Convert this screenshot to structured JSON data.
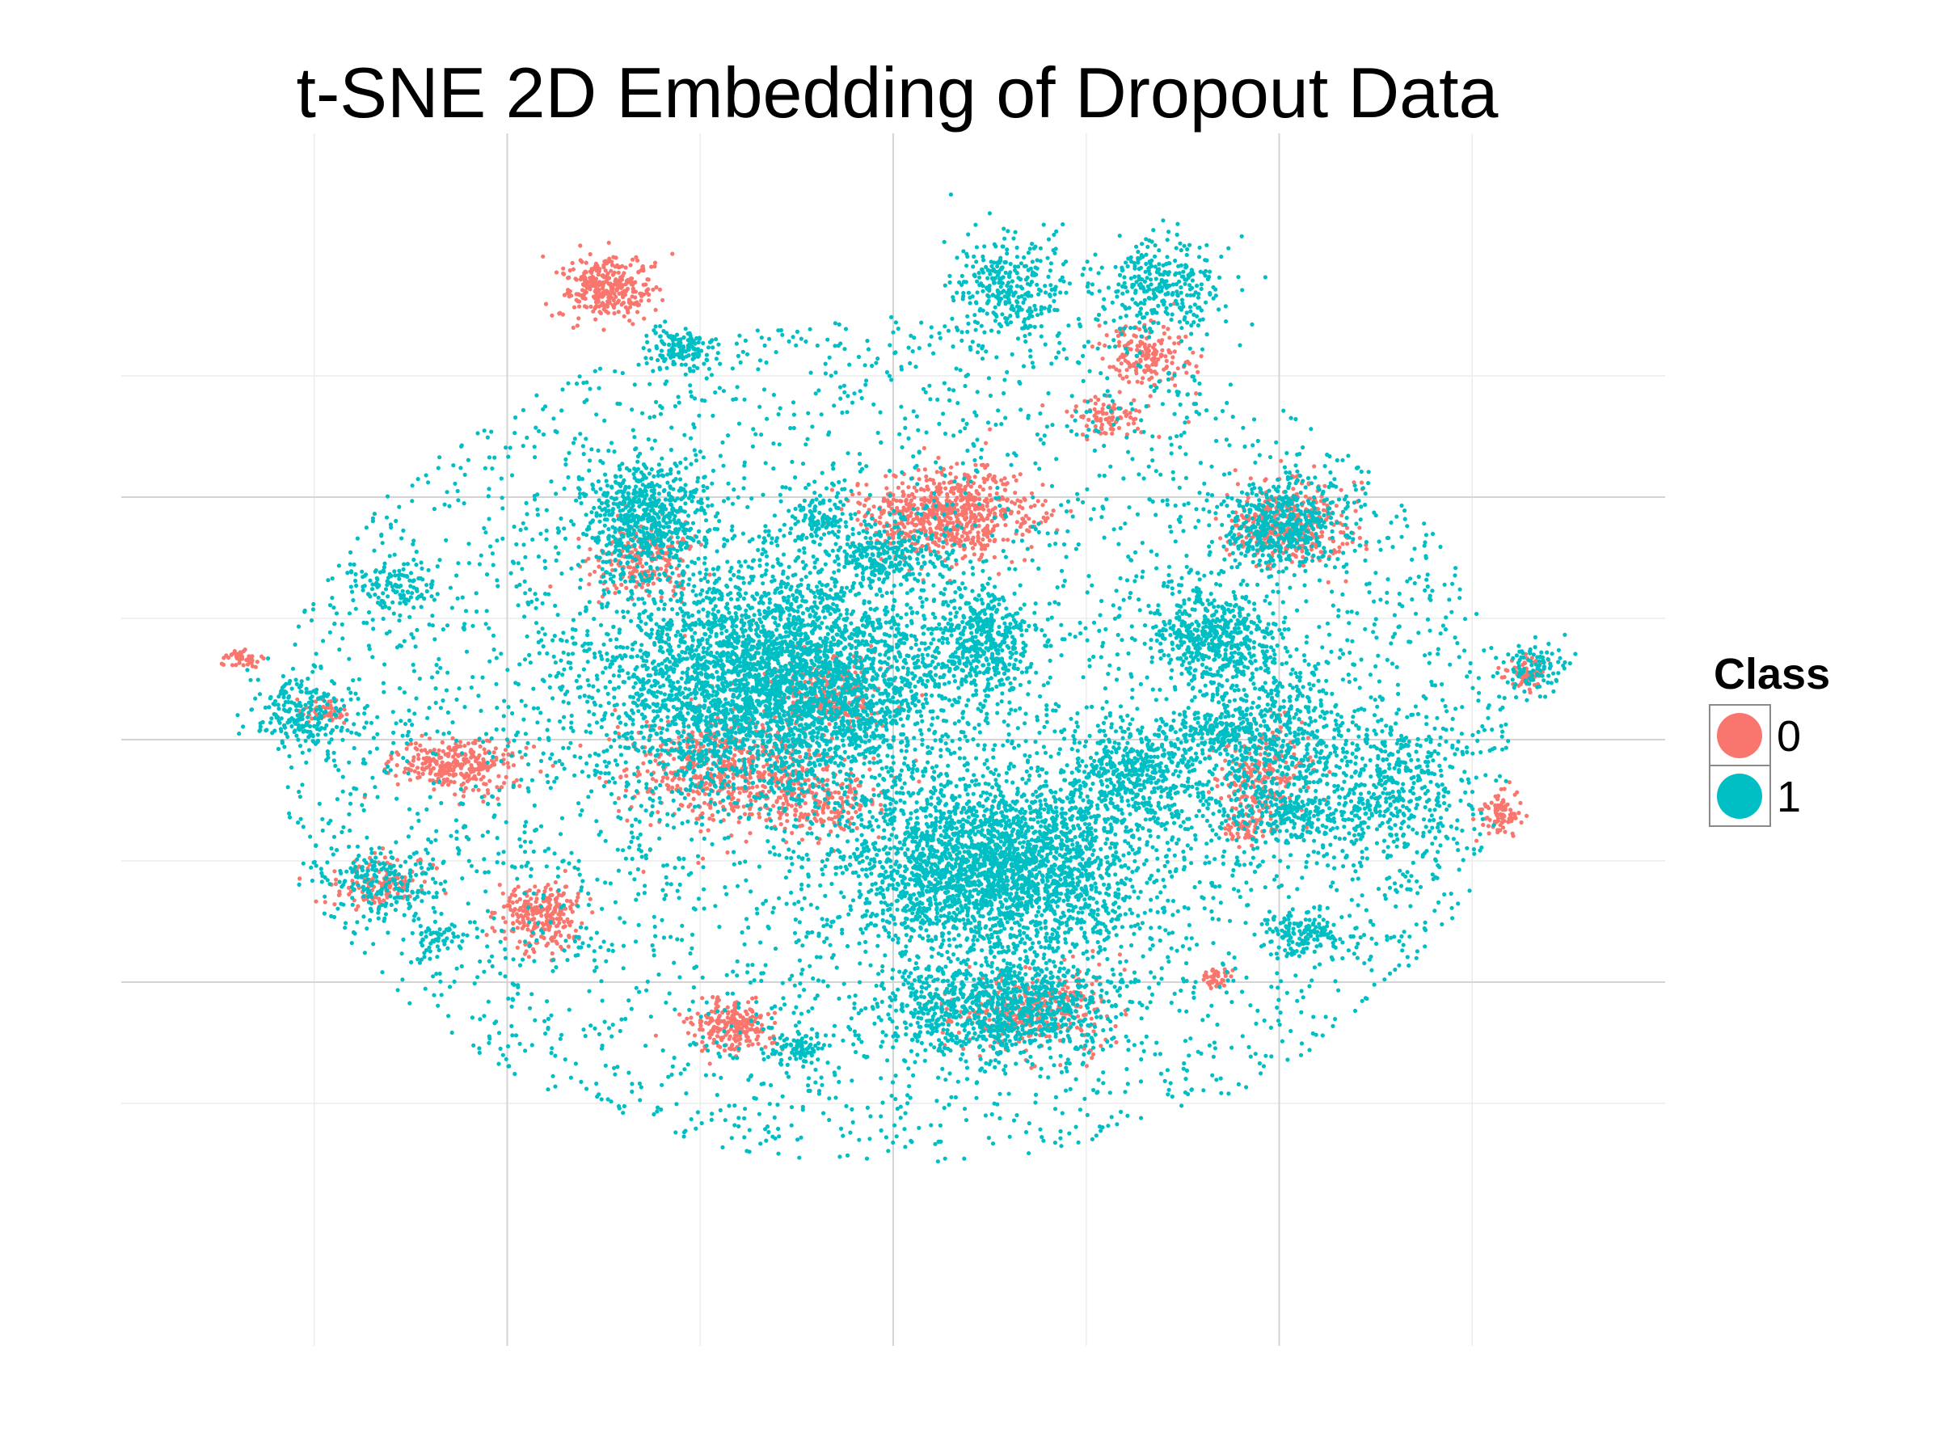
{
  "chart_data": {
    "type": "scatter",
    "title": "t-SNE 2D Embedding of Dropout Data",
    "xlabel": "",
    "ylabel": "",
    "xlim": [
      -50,
      50
    ],
    "ylim": [
      -50,
      50
    ],
    "grid": true,
    "grid_major_x": [
      -25,
      0,
      25
    ],
    "grid_minor_x": [
      -37.5,
      -12.5,
      12.5,
      37.5
    ],
    "grid_major_y": [
      20,
      0,
      -20
    ],
    "grid_minor_y": [
      30,
      10,
      -10,
      -30
    ],
    "tick_labels_shown": false,
    "legend": {
      "title": "Class",
      "placement": "right",
      "entries": [
        {
          "label": "0",
          "color": "#F8766D"
        },
        {
          "label": "1",
          "color": "#00BFC4"
        }
      ]
    },
    "series": [
      {
        "name": "0",
        "color": "#F8766D",
        "clusters": [
          {
            "cx": -18.4,
            "cy": 37.1,
            "rx": 2.6,
            "ry": 2.4,
            "n": 320
          },
          {
            "cx": 3.5,
            "cy": 18.6,
            "rx": 5.0,
            "ry": 3.3,
            "n": 700
          },
          {
            "cx": 25.8,
            "cy": 17.8,
            "rx": 3.4,
            "ry": 3.0,
            "n": 380
          },
          {
            "cx": 16.4,
            "cy": 31.7,
            "rx": 2.6,
            "ry": 2.4,
            "n": 180
          },
          {
            "cx": -28.6,
            "cy": -2.2,
            "rx": 3.4,
            "ry": 1.9,
            "n": 300
          },
          {
            "cx": -22.8,
            "cy": -14.6,
            "rx": 2.6,
            "ry": 2.6,
            "n": 260
          },
          {
            "cx": -33.2,
            "cy": -11.8,
            "rx": 3.0,
            "ry": 2.0,
            "n": 130
          },
          {
            "cx": -10.5,
            "cy": -23.6,
            "rx": 2.5,
            "ry": 1.8,
            "n": 220
          },
          {
            "cx": 9.2,
            "cy": -22.4,
            "rx": 4.5,
            "ry": 3.0,
            "n": 360
          },
          {
            "cx": 24.0,
            "cy": -3.1,
            "rx": 2.5,
            "ry": 3.5,
            "n": 230
          },
          {
            "cx": 39.4,
            "cy": -6.1,
            "rx": 1.1,
            "ry": 1.6,
            "n": 90
          },
          {
            "cx": 41.1,
            "cy": 5.5,
            "rx": 1.2,
            "ry": 1.3,
            "n": 60
          },
          {
            "cx": 20.9,
            "cy": -19.6,
            "rx": 0.8,
            "ry": 0.8,
            "n": 40
          },
          {
            "cx": -42.1,
            "cy": 6.7,
            "rx": 1.2,
            "ry": 0.8,
            "n": 45
          },
          {
            "cx": -36.7,
            "cy": 2.4,
            "rx": 1.4,
            "ry": 1.1,
            "n": 50
          },
          {
            "cx": -16.0,
            "cy": 14.6,
            "rx": 3.2,
            "ry": 3.0,
            "n": 220
          },
          {
            "cx": -10.6,
            "cy": -2.4,
            "rx": 6.0,
            "ry": 4.2,
            "n": 620
          },
          {
            "cx": -3.9,
            "cy": 3.9,
            "rx": 3.4,
            "ry": 3.0,
            "n": 260
          },
          {
            "cx": -4.6,
            "cy": -5.3,
            "rx": 3.0,
            "ry": 2.2,
            "n": 170
          },
          {
            "cx": 13.9,
            "cy": 26.6,
            "rx": 2.6,
            "ry": 1.4,
            "n": 90
          },
          {
            "cx": 22.8,
            "cy": -7.5,
            "rx": 1.2,
            "ry": 1.0,
            "n": 50
          }
        ]
      },
      {
        "name": "1",
        "color": "#00BFC4",
        "clusters": [
          {
            "cx": -7.5,
            "cy": 4.7,
            "rx": 10.5,
            "ry": 8.4,
            "n": 3600
          },
          {
            "cx": 6.6,
            "cy": -10.6,
            "rx": 8.7,
            "ry": 6.4,
            "n": 2600
          },
          {
            "cx": 6.6,
            "cy": -22.0,
            "rx": 7.0,
            "ry": 3.4,
            "n": 900
          },
          {
            "cx": -16.1,
            "cy": 18.2,
            "rx": 3.8,
            "ry": 4.2,
            "n": 600
          },
          {
            "cx": 20.5,
            "cy": 8.4,
            "rx": 3.6,
            "ry": 3.6,
            "n": 450
          },
          {
            "cx": 5.7,
            "cy": 8.2,
            "rx": 3.2,
            "ry": 3.6,
            "n": 380
          },
          {
            "cx": 15.6,
            "cy": -2.9,
            "rx": 4.5,
            "ry": 4.5,
            "n": 520
          },
          {
            "cx": 25.1,
            "cy": 17.8,
            "rx": 3.9,
            "ry": 3.4,
            "n": 450
          },
          {
            "cx": 17.2,
            "cy": 37.2,
            "rx": 3.8,
            "ry": 3.6,
            "n": 320
          },
          {
            "cx": 7.6,
            "cy": 37.3,
            "rx": 3.4,
            "ry": 4.0,
            "n": 330
          },
          {
            "cx": -13.6,
            "cy": 32.3,
            "rx": 2.2,
            "ry": 1.5,
            "n": 150
          },
          {
            "cx": 24.9,
            "cy": -1.2,
            "rx": 5.0,
            "ry": 8.5,
            "n": 700
          },
          {
            "cx": 32.5,
            "cy": -4.0,
            "rx": 3.8,
            "ry": 6.0,
            "n": 380
          },
          {
            "cx": 26.6,
            "cy": -16.1,
            "rx": 2.6,
            "ry": 1.7,
            "n": 130
          },
          {
            "cx": -38.4,
            "cy": 2.2,
            "rx": 3.0,
            "ry": 2.4,
            "n": 200
          },
          {
            "cx": -32.3,
            "cy": 12.5,
            "rx": 2.5,
            "ry": 2.0,
            "n": 110
          },
          {
            "cx": -33.4,
            "cy": -11.6,
            "rx": 3.6,
            "ry": 2.5,
            "n": 180
          },
          {
            "cx": -4.6,
            "cy": 18.6,
            "rx": 1.8,
            "ry": 2.2,
            "n": 110
          },
          {
            "cx": -0.6,
            "cy": 15.2,
            "rx": 3.0,
            "ry": 2.2,
            "n": 220
          },
          {
            "cx": 41.6,
            "cy": 5.8,
            "rx": 1.9,
            "ry": 1.8,
            "n": 100
          },
          {
            "cx": 20.8,
            "cy": 0.9,
            "rx": 2.7,
            "ry": 1.2,
            "n": 120
          },
          {
            "cx": -6.3,
            "cy": -25.5,
            "rx": 1.5,
            "ry": 1.2,
            "n": 90
          },
          {
            "cx": 26.3,
            "cy": -6.5,
            "rx": 2.4,
            "ry": 1.8,
            "n": 110
          },
          {
            "cx": -29.4,
            "cy": -16.5,
            "rx": 1.4,
            "ry": 1.0,
            "n": 50
          },
          {
            "cx": 0,
            "cy": 0,
            "rx": 40,
            "ry": 35,
            "n": 4200
          }
        ]
      }
    ]
  }
}
